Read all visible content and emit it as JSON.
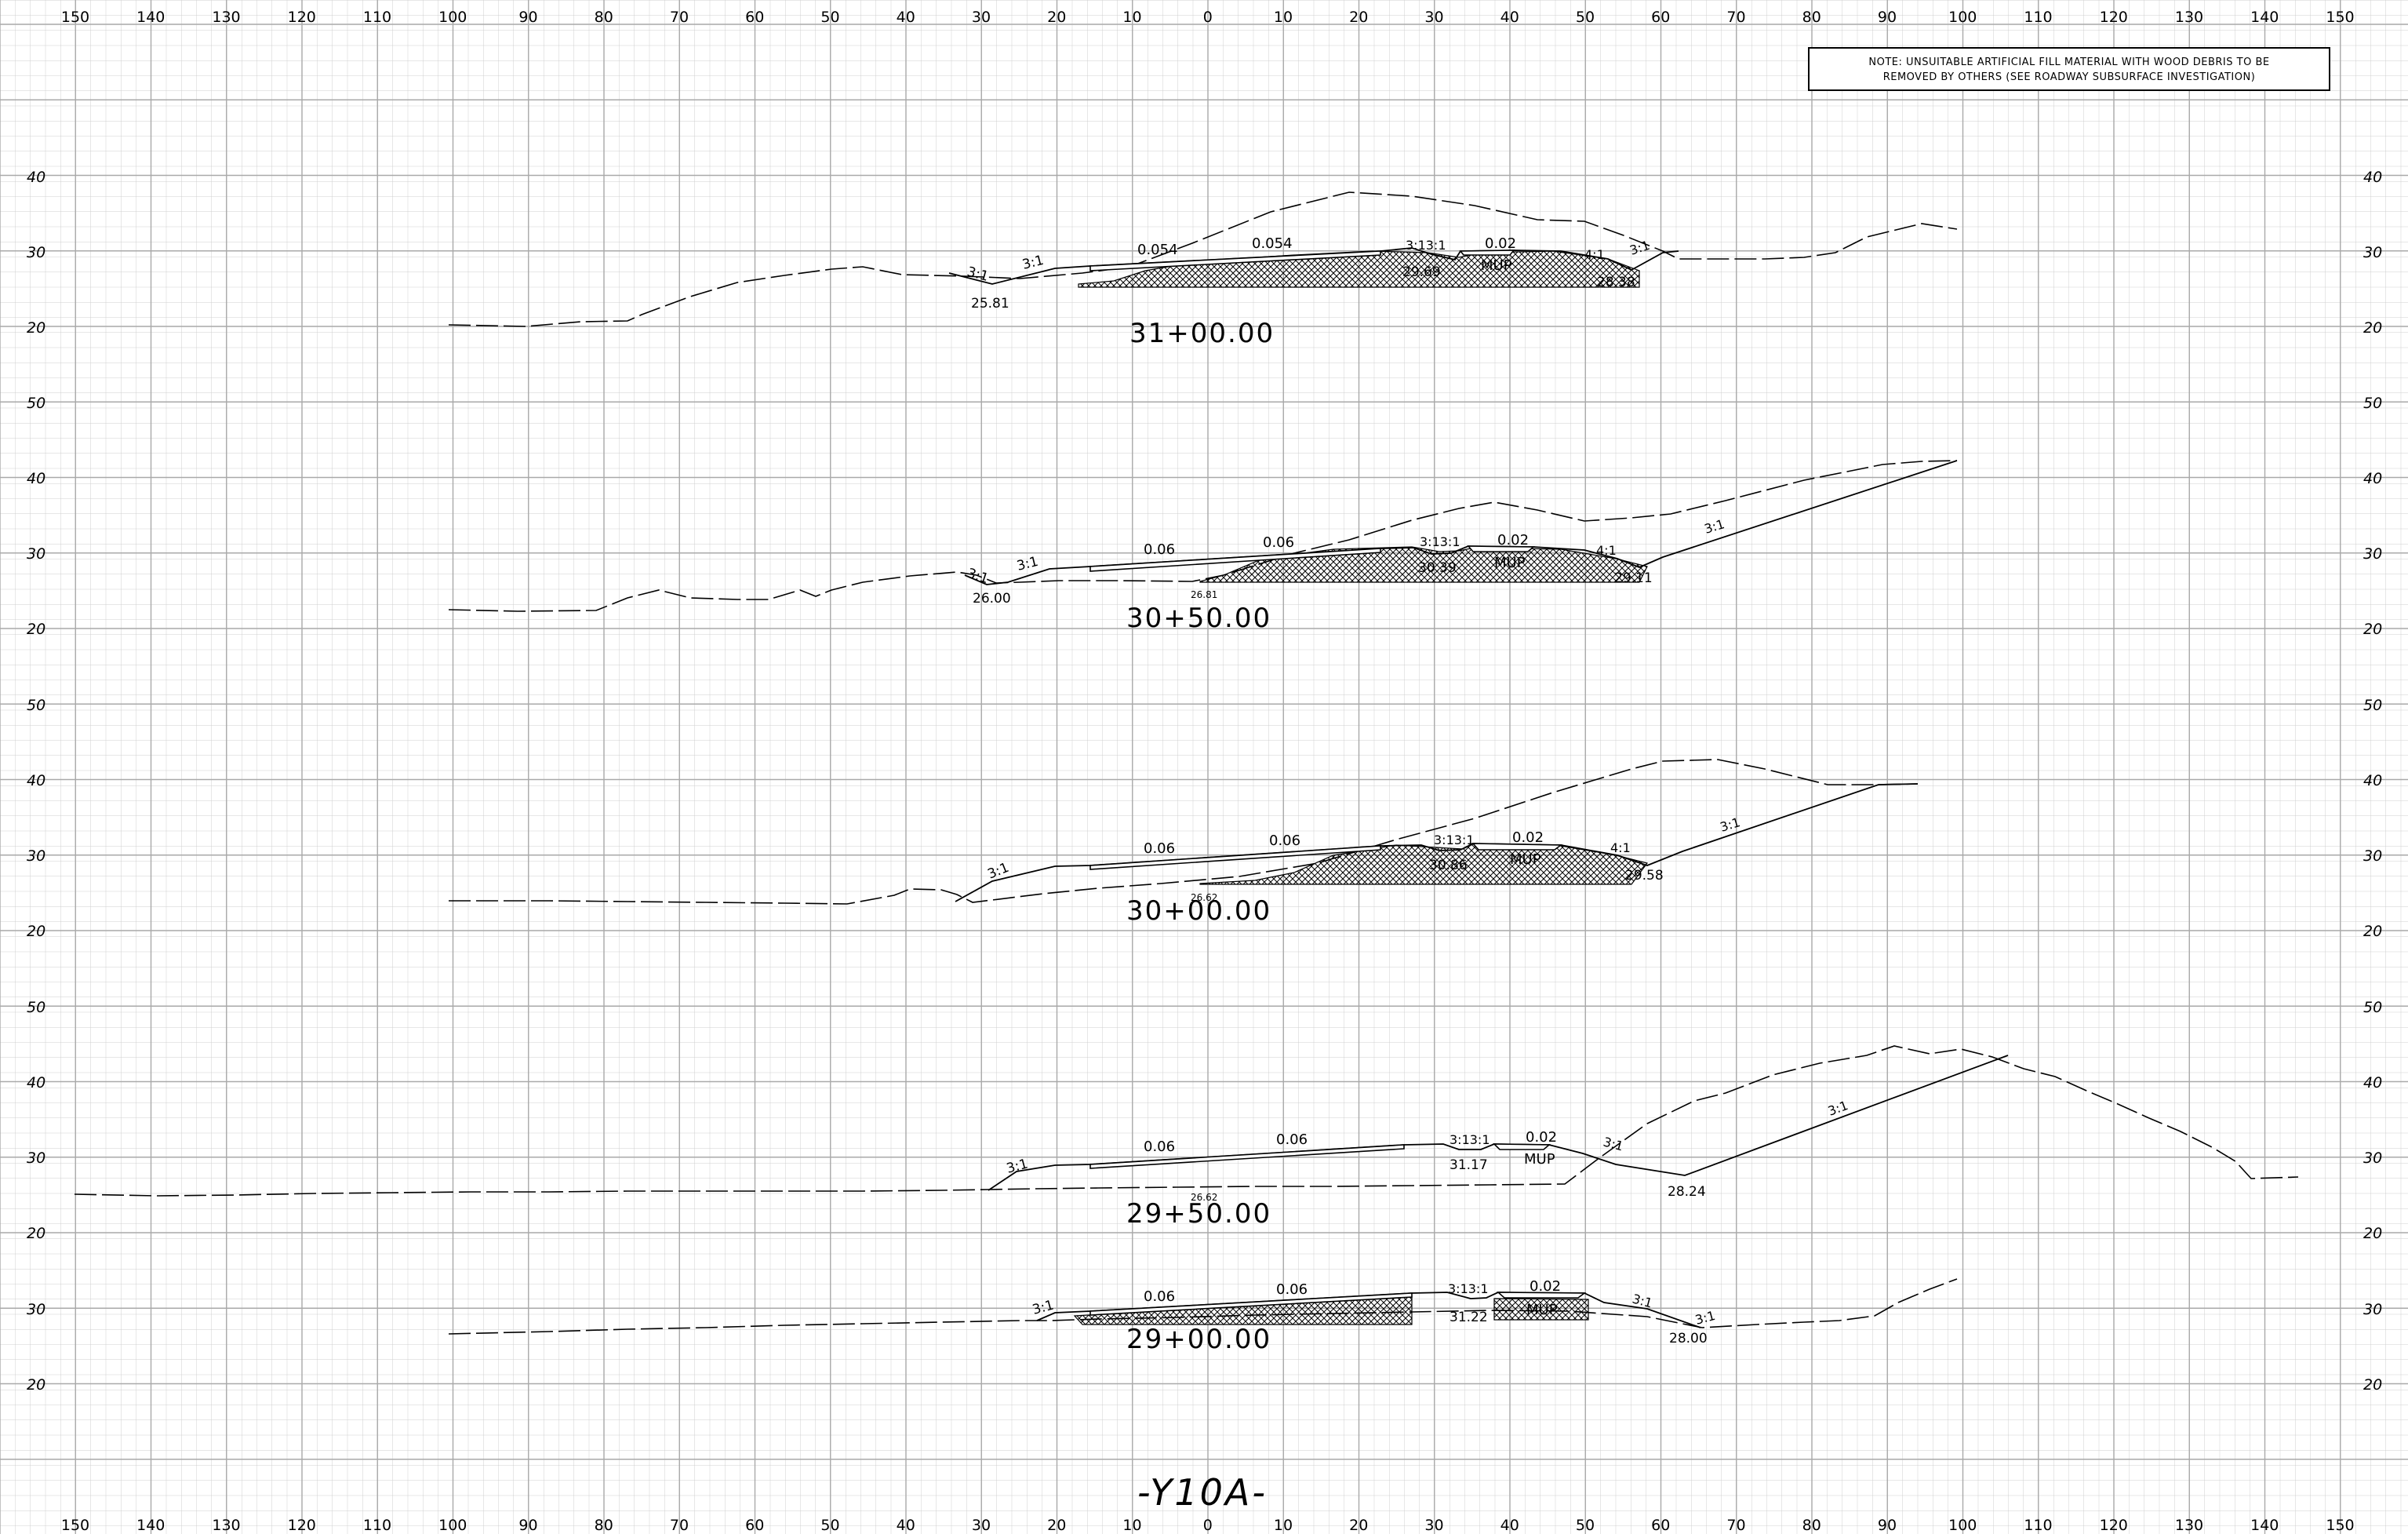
{
  "note": {
    "line1": "NOTE:  UNSUITABLE  ARTIFICIAL  FILL  MATERIAL  WITH  WOOD  DEBRIS  TO  BE",
    "line2": "REMOVED  BY  OTHERS  (SEE  ROADWAY  SUBSURFACE  INVESTIGATION)"
  },
  "top_scale": [
    "150",
    "140",
    "130",
    "120",
    "110",
    "100",
    "90",
    "80",
    "70",
    "60",
    "50",
    "40",
    "30",
    "20",
    "10",
    "0",
    "10",
    "20",
    "30",
    "40",
    "50",
    "60",
    "70",
    "80",
    "90",
    "100",
    "110",
    "120",
    "130",
    "140",
    "150"
  ],
  "bottom_scale": [
    "150",
    "140",
    "130",
    "120",
    "110",
    "100",
    "90",
    "80",
    "70",
    "60",
    "50",
    "40",
    "30",
    "20",
    "10",
    "0",
    "10",
    "20",
    "30",
    "40",
    "50",
    "60",
    "70",
    "80",
    "90",
    "100",
    "110",
    "120",
    "130",
    "140",
    "150"
  ],
  "alignment_label": "-Y10A-",
  "sections": [
    {
      "station": "31+00.00",
      "elev_labels": [
        "40",
        "30",
        "20"
      ],
      "labels": {
        "slope_left_1": "3:1",
        "slope_left_2": "3:1",
        "cross_slope_1": "0.054",
        "cross_slope_2": "0.054",
        "slope_mid": "3:13:1",
        "mup_slope": "0.02",
        "mup": "MUP",
        "slope_right_1": "4:1",
        "slope_right_2": "3:1",
        "elev_left": "25.81",
        "elev_mid": "29.69",
        "elev_right": "28.38"
      }
    },
    {
      "station": "30+50.00",
      "elev_labels": [
        "50",
        "40",
        "30",
        "20"
      ],
      "labels": {
        "slope_left_1": "3:1",
        "slope_left_2": "3:1",
        "cross_slope_1": "0.06",
        "cross_slope_2": "0.06",
        "slope_mid": "3:13:1",
        "mup_slope": "0.02",
        "mup": "MUP",
        "slope_right_1": "4:1",
        "slope_right_2": "3:1",
        "elev_left": "26.00",
        "elev_center": "26.81",
        "elev_mid": "30.39",
        "elev_right": "29.11"
      }
    },
    {
      "station": "30+00.00",
      "elev_labels": [
        "50",
        "40",
        "30",
        "20"
      ],
      "labels": {
        "slope_left_1": "3:1",
        "cross_slope_1": "0.06",
        "cross_slope_2": "0.06",
        "slope_mid": "3:13:1",
        "mup_slope": "0.02",
        "mup": "MUP",
        "slope_right_1": "4:1",
        "slope_right_2": "3:1",
        "elev_center": "26.62",
        "elev_mid": "30.86",
        "elev_right": "29.58"
      }
    },
    {
      "station": "29+50.00",
      "elev_labels": [
        "50",
        "40",
        "30",
        "20"
      ],
      "labels": {
        "slope_left_1": "3:1",
        "cross_slope_1": "0.06",
        "cross_slope_2": "0.06",
        "slope_mid": "3:13:1",
        "mup_slope": "0.02",
        "mup": "MUP",
        "slope_right_1": "3:1",
        "slope_right_2": "3:1",
        "elev_center": "26.62",
        "elev_mid": "31.17",
        "elev_right": "28.24"
      }
    },
    {
      "station": "29+00.00",
      "elev_labels": [
        "30",
        "20"
      ],
      "labels": {
        "slope_left_1": "3:1",
        "cross_slope_1": "0.06",
        "cross_slope_2": "0.06",
        "slope_mid": "3:13:1",
        "mup_slope": "0.02",
        "mup": "MUP",
        "slope_right_1": "3:1",
        "slope_right_2": "3:1",
        "elev_mid": "31.22",
        "elev_right": "28.00"
      }
    }
  ]
}
